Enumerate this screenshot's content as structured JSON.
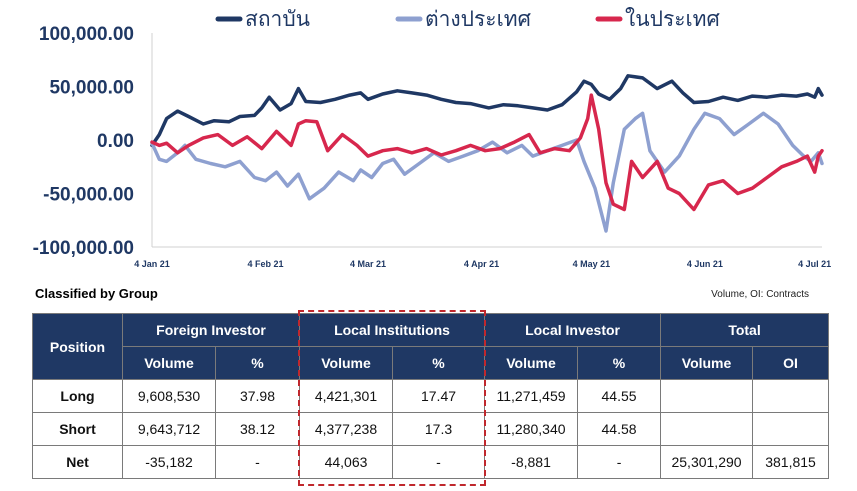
{
  "chart_data": {
    "type": "line",
    "ylim": [
      -100000,
      100000
    ],
    "yticks": [
      100000,
      50000,
      0,
      -50000,
      -100000
    ],
    "ytick_labels": [
      "100,000.00",
      "50,000.00",
      "0.00",
      "-50,000.00",
      "-100,000.00"
    ],
    "xlim": [
      "2021-01-04",
      "2021-07-06"
    ],
    "xticks": [
      "2021-01-04",
      "2021-02-04",
      "2021-03-04",
      "2021-04-04",
      "2021-05-04",
      "2021-06-04",
      "2021-07-04"
    ],
    "xtick_labels": [
      "4 Jan 21",
      "4 Feb 21",
      "4 Mar 21",
      "4 Apr 21",
      "4 May 21",
      "4 Jun 21",
      "4 Jul 21"
    ],
    "grid": false,
    "legend": "top",
    "series": [
      {
        "name": "สถาบัน",
        "color": "#1f3864",
        "points": [
          [
            "2021-01-04",
            -5000
          ],
          [
            "2021-01-06",
            5000
          ],
          [
            "2021-01-08",
            20000
          ],
          [
            "2021-01-11",
            27000
          ],
          [
            "2021-01-14",
            22000
          ],
          [
            "2021-01-18",
            15000
          ],
          [
            "2021-01-21",
            18000
          ],
          [
            "2021-01-25",
            17000
          ],
          [
            "2021-01-28",
            22000
          ],
          [
            "2021-02-01",
            23000
          ],
          [
            "2021-02-03",
            30000
          ],
          [
            "2021-02-05",
            40000
          ],
          [
            "2021-02-08",
            28000
          ],
          [
            "2021-02-11",
            34000
          ],
          [
            "2021-02-13",
            48000
          ],
          [
            "2021-02-15",
            36000
          ],
          [
            "2021-02-19",
            35000
          ],
          [
            "2021-02-23",
            38000
          ],
          [
            "2021-02-27",
            42000
          ],
          [
            "2021-03-02",
            44000
          ],
          [
            "2021-03-04",
            38000
          ],
          [
            "2021-03-08",
            43000
          ],
          [
            "2021-03-12",
            46000
          ],
          [
            "2021-03-16",
            44000
          ],
          [
            "2021-03-20",
            42000
          ],
          [
            "2021-03-24",
            38000
          ],
          [
            "2021-03-28",
            35000
          ],
          [
            "2021-04-01",
            34000
          ],
          [
            "2021-04-06",
            30000
          ],
          [
            "2021-04-10",
            33000
          ],
          [
            "2021-04-14",
            32000
          ],
          [
            "2021-04-18",
            30000
          ],
          [
            "2021-04-22",
            28000
          ],
          [
            "2021-04-26",
            33000
          ],
          [
            "2021-04-30",
            45000
          ],
          [
            "2021-05-02",
            55000
          ],
          [
            "2021-05-04",
            52000
          ],
          [
            "2021-05-06",
            43000
          ],
          [
            "2021-05-09",
            38000
          ],
          [
            "2021-05-12",
            48000
          ],
          [
            "2021-05-14",
            60000
          ],
          [
            "2021-05-18",
            58000
          ],
          [
            "2021-05-22",
            48000
          ],
          [
            "2021-05-26",
            55000
          ],
          [
            "2021-05-29",
            44000
          ],
          [
            "2021-06-01",
            35000
          ],
          [
            "2021-06-05",
            36000
          ],
          [
            "2021-06-09",
            40000
          ],
          [
            "2021-06-13",
            37000
          ],
          [
            "2021-06-17",
            41000
          ],
          [
            "2021-06-21",
            40000
          ],
          [
            "2021-06-25",
            42000
          ],
          [
            "2021-06-29",
            41000
          ],
          [
            "2021-07-02",
            43000
          ],
          [
            "2021-07-04",
            40000
          ],
          [
            "2021-07-05",
            48000
          ],
          [
            "2021-07-06",
            42000
          ]
        ]
      },
      {
        "name": "ต่างประเทศ",
        "color": "#8ea0d0",
        "points": [
          [
            "2021-01-04",
            -3000
          ],
          [
            "2021-01-06",
            -18000
          ],
          [
            "2021-01-08",
            -20000
          ],
          [
            "2021-01-11",
            -12000
          ],
          [
            "2021-01-13",
            -5000
          ],
          [
            "2021-01-16",
            -18000
          ],
          [
            "2021-01-20",
            -22000
          ],
          [
            "2021-01-24",
            -25000
          ],
          [
            "2021-01-28",
            -20000
          ],
          [
            "2021-02-01",
            -35000
          ],
          [
            "2021-02-04",
            -38000
          ],
          [
            "2021-02-07",
            -30000
          ],
          [
            "2021-02-10",
            -43000
          ],
          [
            "2021-02-13",
            -32000
          ],
          [
            "2021-02-16",
            -55000
          ],
          [
            "2021-02-20",
            -45000
          ],
          [
            "2021-02-24",
            -30000
          ],
          [
            "2021-02-28",
            -38000
          ],
          [
            "2021-03-02",
            -28000
          ],
          [
            "2021-03-05",
            -35000
          ],
          [
            "2021-03-08",
            -22000
          ],
          [
            "2021-03-11",
            -18000
          ],
          [
            "2021-03-14",
            -32000
          ],
          [
            "2021-03-18",
            -22000
          ],
          [
            "2021-03-22",
            -12000
          ],
          [
            "2021-03-26",
            -20000
          ],
          [
            "2021-03-30",
            -15000
          ],
          [
            "2021-04-03",
            -10000
          ],
          [
            "2021-04-07",
            -2000
          ],
          [
            "2021-04-11",
            -12000
          ],
          [
            "2021-04-15",
            -5000
          ],
          [
            "2021-04-18",
            -15000
          ],
          [
            "2021-04-22",
            -10000
          ],
          [
            "2021-04-26",
            -5000
          ],
          [
            "2021-04-30",
            0
          ],
          [
            "2021-05-02",
            -20000
          ],
          [
            "2021-05-05",
            -45000
          ],
          [
            "2021-05-08",
            -85000
          ],
          [
            "2021-05-10",
            -40000
          ],
          [
            "2021-05-13",
            10000
          ],
          [
            "2021-05-16",
            20000
          ],
          [
            "2021-05-18",
            25000
          ],
          [
            "2021-05-20",
            -10000
          ],
          [
            "2021-05-24",
            -30000
          ],
          [
            "2021-05-28",
            -15000
          ],
          [
            "2021-06-01",
            10000
          ],
          [
            "2021-06-04",
            25000
          ],
          [
            "2021-06-08",
            20000
          ],
          [
            "2021-06-12",
            5000
          ],
          [
            "2021-06-16",
            15000
          ],
          [
            "2021-06-20",
            25000
          ],
          [
            "2021-06-24",
            15000
          ],
          [
            "2021-06-28",
            -5000
          ],
          [
            "2021-07-01",
            -15000
          ],
          [
            "2021-07-03",
            -20000
          ],
          [
            "2021-07-05",
            -12000
          ],
          [
            "2021-07-06",
            -22000
          ]
        ]
      },
      {
        "name": "ในประเทศ",
        "color": "#d7274d",
        "points": [
          [
            "2021-01-04",
            -2000
          ],
          [
            "2021-01-06",
            -5000
          ],
          [
            "2021-01-08",
            -3000
          ],
          [
            "2021-01-11",
            -12000
          ],
          [
            "2021-01-14",
            -5000
          ],
          [
            "2021-01-18",
            2000
          ],
          [
            "2021-01-22",
            5000
          ],
          [
            "2021-01-26",
            -5000
          ],
          [
            "2021-01-30",
            3000
          ],
          [
            "2021-02-03",
            -8000
          ],
          [
            "2021-02-07",
            8000
          ],
          [
            "2021-02-11",
            -5000
          ],
          [
            "2021-02-13",
            15000
          ],
          [
            "2021-02-15",
            18000
          ],
          [
            "2021-02-18",
            17000
          ],
          [
            "2021-02-21",
            -10000
          ],
          [
            "2021-02-25",
            5000
          ],
          [
            "2021-03-01",
            -5000
          ],
          [
            "2021-03-04",
            -15000
          ],
          [
            "2021-03-08",
            -10000
          ],
          [
            "2021-03-12",
            -8000
          ],
          [
            "2021-03-16",
            -12000
          ],
          [
            "2021-03-20",
            -8000
          ],
          [
            "2021-03-24",
            -14000
          ],
          [
            "2021-03-28",
            -10000
          ],
          [
            "2021-04-01",
            -5000
          ],
          [
            "2021-04-05",
            -10000
          ],
          [
            "2021-04-09",
            -8000
          ],
          [
            "2021-04-13",
            -2000
          ],
          [
            "2021-04-17",
            5000
          ],
          [
            "2021-04-20",
            -12000
          ],
          [
            "2021-04-24",
            -8000
          ],
          [
            "2021-04-28",
            -10000
          ],
          [
            "2021-05-01",
            2000
          ],
          [
            "2021-05-03",
            20000
          ],
          [
            "2021-05-04",
            42000
          ],
          [
            "2021-05-06",
            10000
          ],
          [
            "2021-05-08",
            -40000
          ],
          [
            "2021-05-10",
            -60000
          ],
          [
            "2021-05-13",
            -65000
          ],
          [
            "2021-05-15",
            -20000
          ],
          [
            "2021-05-18",
            -35000
          ],
          [
            "2021-05-22",
            -20000
          ],
          [
            "2021-05-25",
            -45000
          ],
          [
            "2021-05-28",
            -50000
          ],
          [
            "2021-06-01",
            -65000
          ],
          [
            "2021-06-05",
            -42000
          ],
          [
            "2021-06-09",
            -38000
          ],
          [
            "2021-06-13",
            -50000
          ],
          [
            "2021-06-17",
            -45000
          ],
          [
            "2021-06-21",
            -35000
          ],
          [
            "2021-06-25",
            -25000
          ],
          [
            "2021-06-29",
            -20000
          ],
          [
            "2021-07-02",
            -15000
          ],
          [
            "2021-07-04",
            -30000
          ],
          [
            "2021-07-05",
            -15000
          ],
          [
            "2021-07-06",
            -10000
          ]
        ]
      }
    ]
  },
  "caption": "Classified by Group",
  "units_note": "Volume, OI: Contracts",
  "table": {
    "position_header": "Position",
    "groups": [
      "Foreign Investor",
      "Local Institutions",
      "Local Investor",
      "Total"
    ],
    "subheaders": [
      "Volume",
      "%",
      "Volume",
      "%",
      "Volume",
      "%",
      "Volume",
      "OI"
    ],
    "rows": [
      {
        "label": "Long",
        "cells": [
          "9,608,530",
          "37.98",
          "4,421,301",
          "17.47",
          "11,271,459",
          "44.55",
          "",
          ""
        ]
      },
      {
        "label": "Short",
        "cells": [
          "9,643,712",
          "38.12",
          "4,377,238",
          "17.3",
          "11,280,340",
          "44.58",
          "",
          ""
        ]
      },
      {
        "label": "Net",
        "cells": [
          "-35,182",
          "-",
          "44,063",
          "-",
          "-8,881",
          "-",
          "25,301,290",
          "381,815"
        ]
      }
    ]
  },
  "colors": {
    "header_bg": "#1f3864",
    "negative": "#e0302e",
    "positive": "#2f8f2f",
    "highlight_border": "#c0282d"
  }
}
